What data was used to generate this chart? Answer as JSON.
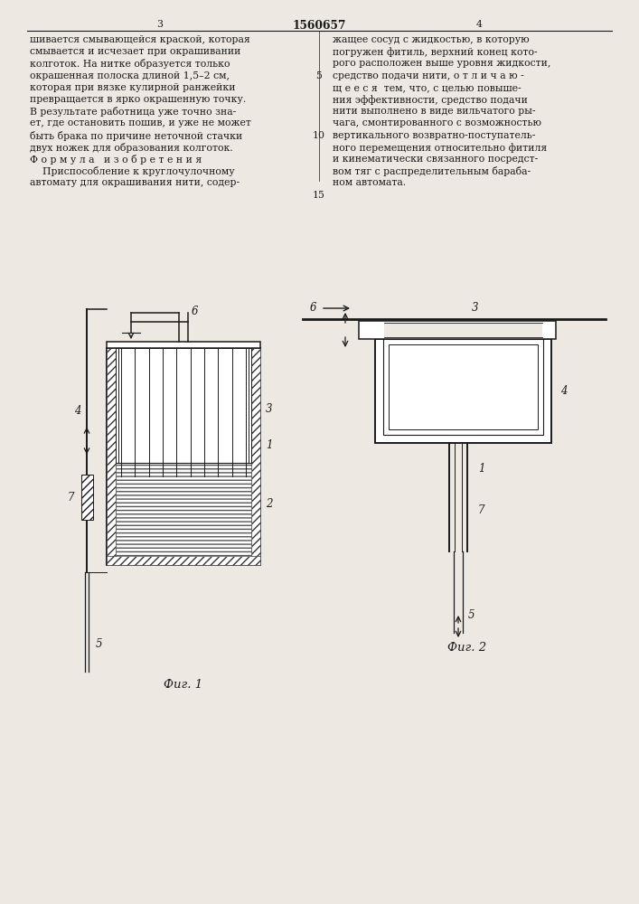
{
  "bg_color": "#ede9e2",
  "page_color": "#ede9e2",
  "text_color": "#1a1a1a",
  "line_color": "#1a1a1a",
  "header_page_left": "3",
  "header_title": "1560657",
  "header_page_right": "4",
  "fig1_caption": "Фиг. 1",
  "fig2_caption": "Фиг. 2",
  "text_left_col": [
    "шивается смывающейся краской, которая",
    "смывается и исчезает при окрашивании",
    "колготок. На нитке образуется только",
    "окрашенная полоска длиной 1,5–2 см,",
    "которая при вязке кулирной ранжейки",
    "превращается в ярко окрашенную точку.",
    "В результате работница уже точно зна-",
    "ет, где остановить пошив, и уже не может",
    "быть брака по причине неточной стачки",
    "двух ножек для образования колготок.",
    "Ф о р м у л а   и з о б р е т е н и я",
    "    Приспособление к круглочулочному",
    "автомату для окрашивания нити, содер-"
  ],
  "text_right_col": [
    "жащее сосуд с жидкостью, в которую",
    "погружен фитиль, верхний конец кото-",
    "рого расположен выше уровня жидкости,",
    "средство подачи нити, о т л и ч а ю -",
    "щ е е с я  тем, что, с целью повыше-",
    "ния эффективности, средство подачи",
    "нити выполнено в виде вильчатого ры-",
    "чага, смонтированного с возможностью",
    "вертикального возвратно-поступатель-",
    "ного перемещения относительно фитиля",
    "и кинематически связанного посредст-",
    "вом тяг с распределительным бараба-",
    "ном автомата."
  ]
}
